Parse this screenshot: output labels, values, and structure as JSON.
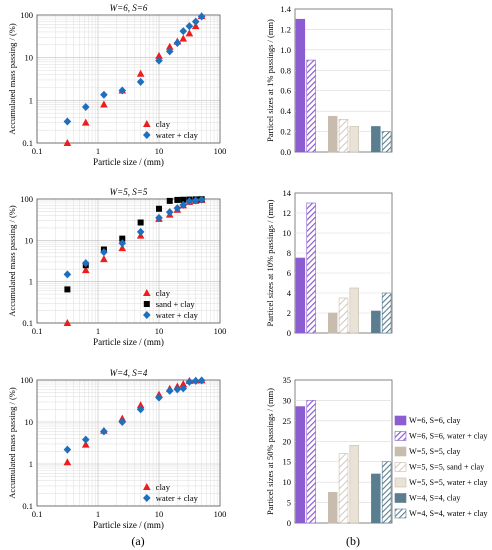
{
  "figure": {
    "label_a": "(a)",
    "label_b": "(b)"
  },
  "colors": {
    "clay": "#ee1c1c",
    "water_clay": "#1f6fbf",
    "sand_clay": "#000000",
    "w6": "#8c5cd1",
    "w5": "#c8bcae",
    "w4": "#5a7d90"
  },
  "chart_data": [
    {
      "type": "scatter",
      "title": "W=6, S=6",
      "xlabel": "Particle size / (mm)",
      "ylabel": "Accumulated mass passing / (%)",
      "xscale": "log",
      "yscale": "log",
      "xlim": [
        0.1,
        100
      ],
      "ylim": [
        0.1,
        100
      ],
      "xticks": [
        "0.1",
        "1",
        "10",
        "100"
      ],
      "yticks": [
        "0.1",
        "1",
        "10",
        "100"
      ],
      "legend": "bottom-right",
      "series": [
        {
          "name": "clay",
          "marker": "triangle",
          "x": [
            0.315,
            0.63,
            1.25,
            2.5,
            5,
            10,
            15,
            20,
            25,
            31.5,
            40,
            50
          ],
          "y": [
            0.1,
            0.3,
            0.8,
            1.7,
            4.2,
            11,
            18,
            24,
            28,
            37,
            55,
            95
          ]
        },
        {
          "name": "water + clay",
          "marker": "diamond",
          "x": [
            0.315,
            0.63,
            1.25,
            2.5,
            5,
            10,
            15,
            20,
            25,
            31.5,
            40,
            50
          ],
          "y": [
            0.32,
            0.7,
            1.35,
            1.7,
            2.7,
            8.5,
            14,
            22,
            42,
            55,
            70,
            92
          ]
        }
      ]
    },
    {
      "type": "scatter",
      "title": "W=5, S=5",
      "xlabel": "Particle size / (mm)",
      "ylabel": "Accumulated mass passing / (%)",
      "xscale": "log",
      "yscale": "log",
      "xlim": [
        0.1,
        100
      ],
      "ylim": [
        0.1,
        100
      ],
      "xticks": [
        "0.1",
        "1",
        "10",
        "100"
      ],
      "yticks": [
        "0.1",
        "1",
        "10",
        "100"
      ],
      "legend": "bottom-right",
      "series": [
        {
          "name": "clay",
          "marker": "triangle",
          "x": [
            0.315,
            0.63,
            1.25,
            2.5,
            5,
            10,
            15,
            20,
            25,
            31.5,
            40,
            50
          ],
          "y": [
            0.1,
            1.9,
            3.5,
            6.5,
            13,
            33,
            42,
            55,
            70,
            85,
            90,
            95
          ]
        },
        {
          "name": "sand + clay",
          "marker": "square",
          "x": [
            0.315,
            0.63,
            1.25,
            2.5,
            5,
            10,
            15,
            20,
            25,
            31.5,
            40,
            50
          ],
          "y": [
            0.65,
            2.5,
            6,
            11,
            27,
            58,
            90,
            95,
            96,
            97,
            98,
            99
          ]
        },
        {
          "name": "water + clay",
          "marker": "diamond",
          "x": [
            0.315,
            0.63,
            1.25,
            2.5,
            5,
            10,
            15,
            20,
            25,
            31.5,
            40,
            50
          ],
          "y": [
            1.5,
            2.8,
            5.2,
            8.5,
            16,
            35,
            48,
            60,
            72,
            88,
            92,
            96
          ]
        }
      ]
    },
    {
      "type": "scatter",
      "title": "W=4, S=4",
      "xlabel": "Particle size / (mm)",
      "ylabel": "Accumulated mass passing / (%)",
      "xscale": "log",
      "yscale": "log",
      "xlim": [
        0.1,
        100
      ],
      "ylim": [
        0.1,
        100
      ],
      "xticks": [
        "0.1",
        "1",
        "10",
        "100"
      ],
      "yticks": [
        "0.1",
        "1",
        "10",
        "100"
      ],
      "legend": "bottom-right",
      "series": [
        {
          "name": "clay",
          "marker": "triangle",
          "x": [
            0.315,
            0.63,
            1.25,
            2.5,
            5,
            10,
            15,
            20,
            25,
            31.5,
            40,
            50
          ],
          "y": [
            1.1,
            2.9,
            6.2,
            12,
            25,
            45,
            62,
            70,
            80,
            95,
            97,
            98
          ]
        },
        {
          "name": "water + clay",
          "marker": "diamond",
          "x": [
            0.315,
            0.63,
            1.25,
            2.5,
            5,
            10,
            15,
            20,
            25,
            31.5,
            40,
            50
          ],
          "y": [
            2.2,
            3.8,
            6,
            10,
            20,
            38,
            55,
            60,
            63,
            90,
            95,
            97
          ]
        }
      ]
    },
    {
      "type": "bar",
      "ylabel": "Particel sizes at 1% passings / (mm)",
      "ylim": [
        0,
        1.4
      ],
      "yticks": [
        "0.0",
        "0.2",
        "0.4",
        "0.6",
        "0.8",
        "1.0",
        "1.2",
        "1.4"
      ],
      "values": [
        1.3,
        0.9,
        null,
        0.35,
        0.32,
        0.25,
        null,
        0.25,
        0.2
      ]
    },
    {
      "type": "bar",
      "ylabel": "Particel sizes at 10% passings / (mm)",
      "ylim": [
        0,
        14
      ],
      "yticks": [
        "0",
        "2",
        "4",
        "6",
        "8",
        "10",
        "12",
        "14"
      ],
      "values": [
        7.5,
        13,
        0,
        2,
        3.5,
        4.5,
        0,
        2.2,
        4
      ]
    },
    {
      "type": "bar",
      "ylabel": "Particel sizes at 50% passings / (mm)",
      "ylim": [
        0,
        35
      ],
      "yticks": [
        "0",
        "5",
        "10",
        "15",
        "20",
        "25",
        "30",
        "35"
      ],
      "values": [
        28.5,
        30,
        0,
        7.5,
        17,
        19,
        0,
        12,
        15
      ],
      "legend": "right",
      "bars": [
        {
          "name": "W=6, S=6, clay",
          "color": "w6",
          "pattern": "solid"
        },
        {
          "name": "W=6, S=6, water + clay",
          "color": "w6",
          "pattern": "hatch"
        },
        {
          "name": "W=5, S=5, clay",
          "color": "w5",
          "pattern": "solid"
        },
        {
          "name": "W=5, S=5, sand + clay",
          "color": "w5",
          "pattern": "diag"
        },
        {
          "name": "W=5, S=5, water + clay",
          "color": "w5",
          "pattern": "light"
        },
        {
          "name": "W=4, S=4, clay",
          "color": "w4",
          "pattern": "solid"
        },
        {
          "name": "W=4, S=4, water + clay",
          "color": "w4",
          "pattern": "hatch"
        }
      ]
    }
  ]
}
